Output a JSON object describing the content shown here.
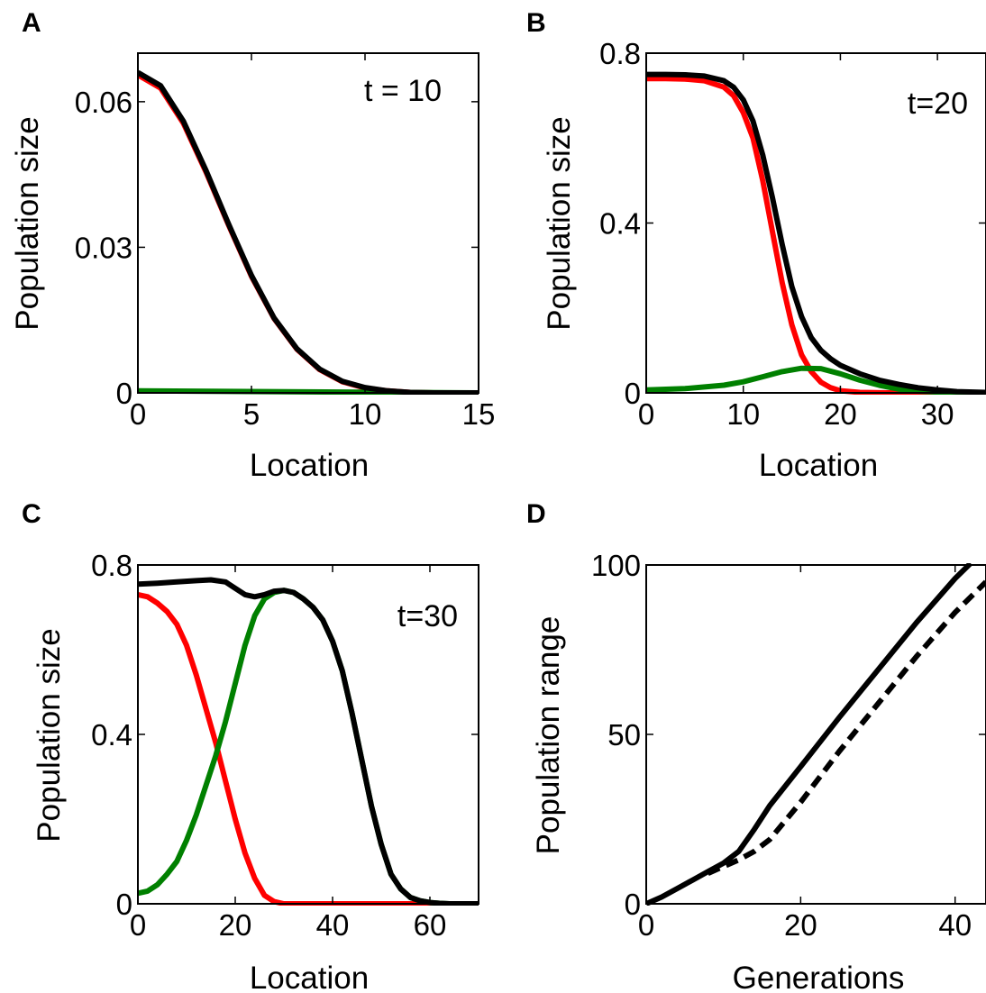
{
  "chart_data": [
    {
      "panel": "A",
      "type": "line",
      "annotation": "t = 10",
      "xlabel": "Location",
      "ylabel": "Population size",
      "xlim": [
        0,
        15
      ],
      "ylim": [
        0,
        0.07
      ],
      "xticks": [
        0,
        5,
        10,
        15
      ],
      "yticks": [
        0,
        0.03,
        0.06
      ],
      "xtick_labels": [
        "0",
        "5",
        "10",
        "15"
      ],
      "ytick_labels": [
        "0",
        "0.03",
        "0.06"
      ],
      "series": [
        {
          "color": "#ff0000",
          "x": [
            0,
            1,
            2,
            3,
            4,
            5,
            6,
            7,
            8,
            9,
            10,
            11,
            12,
            13,
            14,
            15
          ],
          "y": [
            0.0655,
            0.0628,
            0.0556,
            0.0455,
            0.0345,
            0.024,
            0.0153,
            0.009,
            0.0048,
            0.0023,
            0.001,
            0.0004,
            0.0001,
            0.0,
            0.0,
            0.0
          ]
        },
        {
          "color": "#008000",
          "x": [
            0,
            15
          ],
          "y": [
            0.0004,
            0.0
          ]
        },
        {
          "color": "#000000",
          "x": [
            0,
            1,
            2,
            3,
            4,
            5,
            6,
            7,
            8,
            9,
            10,
            11,
            12,
            13,
            14,
            15
          ],
          "y": [
            0.066,
            0.0633,
            0.056,
            0.0458,
            0.0347,
            0.0242,
            0.0154,
            0.0091,
            0.0049,
            0.0024,
            0.0011,
            0.0004,
            0.0001,
            0.0,
            0.0,
            0.0
          ]
        }
      ]
    },
    {
      "panel": "B",
      "type": "line",
      "annotation": "t=20",
      "xlabel": "Location",
      "ylabel": "Population size",
      "xlim": [
        0,
        35
      ],
      "ylim": [
        0,
        0.8
      ],
      "xticks": [
        0,
        10,
        20,
        30
      ],
      "yticks": [
        0,
        0.4,
        0.8
      ],
      "xtick_labels": [
        "0",
        "10",
        "20",
        "30"
      ],
      "ytick_labels": [
        "0",
        "0.4",
        "0.8"
      ],
      "series": [
        {
          "color": "#ff0000",
          "x": [
            0,
            2,
            4,
            6,
            8,
            9,
            10,
            11,
            12,
            13,
            14,
            15,
            16,
            17,
            18,
            19,
            20,
            22,
            25,
            35
          ],
          "y": [
            0.74,
            0.74,
            0.739,
            0.735,
            0.72,
            0.7,
            0.66,
            0.6,
            0.5,
            0.38,
            0.26,
            0.16,
            0.09,
            0.05,
            0.025,
            0.012,
            0.005,
            0.001,
            0.0,
            0.0
          ]
        },
        {
          "color": "#008000",
          "x": [
            0,
            4,
            8,
            10,
            12,
            14,
            16,
            18,
            20,
            22,
            24,
            26,
            28,
            30,
            35
          ],
          "y": [
            0.007,
            0.01,
            0.018,
            0.026,
            0.038,
            0.05,
            0.058,
            0.057,
            0.045,
            0.03,
            0.018,
            0.009,
            0.004,
            0.002,
            0.0
          ]
        },
        {
          "color": "#000000",
          "x": [
            0,
            2,
            4,
            6,
            8,
            9,
            10,
            11,
            12,
            13,
            14,
            15,
            16,
            17,
            18,
            19,
            20,
            22,
            24,
            26,
            28,
            30,
            32,
            35
          ],
          "y": [
            0.75,
            0.75,
            0.749,
            0.746,
            0.735,
            0.72,
            0.69,
            0.64,
            0.56,
            0.46,
            0.35,
            0.25,
            0.18,
            0.13,
            0.1,
            0.08,
            0.065,
            0.045,
            0.03,
            0.02,
            0.012,
            0.007,
            0.003,
            0.001
          ]
        }
      ]
    },
    {
      "panel": "C",
      "type": "line",
      "annotation": "t=30",
      "xlabel": "Location",
      "ylabel": "Population size",
      "xlim": [
        0,
        70
      ],
      "ylim": [
        0,
        0.8
      ],
      "xticks": [
        0,
        20,
        40,
        60
      ],
      "yticks": [
        0,
        0.4,
        0.8
      ],
      "xtick_labels": [
        "0",
        "20",
        "40",
        "60"
      ],
      "ytick_labels": [
        "0",
        "0.4",
        "0.8"
      ],
      "series": [
        {
          "color": "#ff0000",
          "x": [
            0,
            2,
            4,
            6,
            8,
            10,
            12,
            14,
            16,
            18,
            20,
            22,
            24,
            26,
            28,
            30,
            35,
            70
          ],
          "y": [
            0.73,
            0.725,
            0.71,
            0.69,
            0.66,
            0.61,
            0.54,
            0.46,
            0.38,
            0.29,
            0.2,
            0.12,
            0.06,
            0.02,
            0.005,
            0.0,
            0.0,
            0.0
          ]
        },
        {
          "color": "#008000",
          "x": [
            0,
            2,
            4,
            6,
            8,
            10,
            12,
            14,
            16,
            18,
            20,
            22,
            24,
            26,
            28,
            30,
            32,
            34,
            36,
            38,
            40,
            42,
            44,
            46,
            48,
            50,
            52,
            54,
            56,
            58,
            60,
            62,
            64,
            70
          ],
          "y": [
            0.025,
            0.03,
            0.045,
            0.07,
            0.1,
            0.15,
            0.21,
            0.28,
            0.35,
            0.43,
            0.52,
            0.61,
            0.68,
            0.72,
            0.735,
            0.74,
            0.735,
            0.72,
            0.7,
            0.67,
            0.62,
            0.55,
            0.45,
            0.34,
            0.23,
            0.14,
            0.07,
            0.035,
            0.015,
            0.007,
            0.003,
            0.001,
            0.0,
            0.0
          ]
        },
        {
          "color": "#000000",
          "x": [
            0,
            4,
            8,
            12,
            15,
            18,
            20,
            22,
            24,
            26,
            28,
            30,
            32,
            34,
            36,
            38,
            40,
            42,
            44,
            46,
            48,
            50,
            52,
            54,
            56,
            58,
            60,
            62,
            64,
            66,
            70
          ],
          "y": [
            0.755,
            0.757,
            0.76,
            0.763,
            0.765,
            0.76,
            0.745,
            0.73,
            0.725,
            0.73,
            0.738,
            0.74,
            0.735,
            0.72,
            0.7,
            0.67,
            0.62,
            0.55,
            0.45,
            0.34,
            0.23,
            0.14,
            0.07,
            0.035,
            0.015,
            0.007,
            0.003,
            0.001,
            0.0,
            0.0,
            0.0
          ]
        }
      ]
    },
    {
      "panel": "D",
      "type": "line",
      "annotation": "",
      "xlabel": "Generations",
      "ylabel": "Population range",
      "xlim": [
        0,
        44
      ],
      "ylim": [
        0,
        100
      ],
      "xticks": [
        0,
        20,
        40
      ],
      "yticks": [
        0,
        50,
        100
      ],
      "xtick_labels": [
        "0",
        "20",
        "40"
      ],
      "ytick_labels": [
        "0",
        "50",
        "100"
      ],
      "series": [
        {
          "color": "#000000",
          "style": "solid",
          "x": [
            0,
            2,
            4,
            6,
            8,
            10,
            12,
            14,
            16,
            20,
            25,
            30,
            35,
            40,
            42
          ],
          "y": [
            0,
            2,
            4.5,
            7,
            9.5,
            12,
            15.5,
            22,
            29,
            40.5,
            55,
            69,
            83,
            96,
            100.5
          ]
        },
        {
          "color": "#000000",
          "style": "dashed",
          "x": [
            8,
            10,
            12,
            14,
            16,
            20,
            25,
            30,
            35,
            40,
            44
          ],
          "y": [
            9,
            11,
            13,
            15.5,
            19,
            30,
            45,
            59,
            73,
            86,
            95
          ]
        }
      ]
    }
  ],
  "panel_letters": [
    "A",
    "B",
    "C",
    "D"
  ]
}
